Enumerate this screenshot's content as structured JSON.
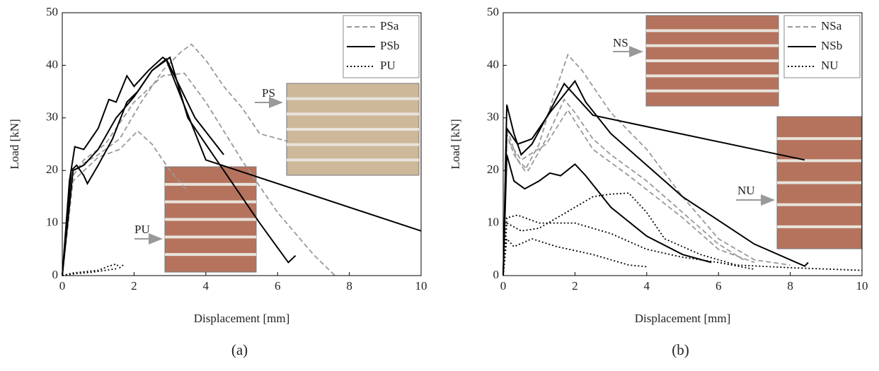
{
  "chart_data": [
    {
      "type": "line",
      "label": "(a)",
      "xlabel": "Displacement [mm]",
      "ylabel": "Load [kN]",
      "xlim": [
        0,
        10
      ],
      "ylim": [
        0,
        50
      ],
      "xticks": [
        0,
        2,
        4,
        6,
        8,
        10
      ],
      "yticks": [
        0,
        10,
        20,
        30,
        40,
        50
      ],
      "legend": "upper right",
      "annotations": [
        "PS",
        "PU"
      ],
      "series": [
        {
          "name": "PSa",
          "color": "#999999",
          "dash": "dashed",
          "curves": [
            {
              "x": [
                0,
                0.3,
                0.6,
                1.2,
                2,
                2.8,
                3.4,
                4,
                5,
                6,
                7,
                7.6
              ],
              "values": [
                0,
                19,
                22,
                25,
                33,
                38,
                38.5,
                33,
                22,
                12,
                4,
                0
              ]
            },
            {
              "x": [
                0,
                0.2,
                0.5,
                1,
                1.6,
                2.2,
                2.8,
                3.3,
                3.6,
                4,
                4.5,
                5,
                5.5,
                6.3
              ],
              "values": [
                0,
                18,
                21,
                23,
                26,
                33,
                39,
                42.5,
                44,
                41,
                36,
                32,
                27,
                25.5
              ]
            },
            {
              "x": [
                0,
                0.3,
                1,
                1.6,
                2.1,
                2.5,
                3,
                3.5
              ],
              "values": [
                0,
                18,
                22.5,
                24,
                27.5,
                25,
                20,
                16
              ]
            }
          ]
        },
        {
          "name": "PSb",
          "color": "#000000",
          "dash": "solid",
          "curves": [
            {
              "x": [
                0,
                0.2,
                0.35,
                0.6,
                1,
                1.3,
                1.5,
                1.8,
                2,
                2.4,
                2.8,
                2.9,
                4,
                10
              ],
              "values": [
                0,
                18,
                24.5,
                24,
                28,
                33.5,
                33,
                38,
                36,
                39,
                41.5,
                41,
                22,
                8.5
              ]
            },
            {
              "x": [
                0,
                0.25,
                0.4,
                0.6,
                0.7,
                1,
                1.4,
                1.8,
                2.1,
                2.5,
                3,
                3.5,
                4.5,
                5.5,
                6.3,
                6.5
              ],
              "values": [
                0,
                20,
                21,
                19,
                17.5,
                21,
                26,
                33,
                35,
                39,
                41.5,
                30,
                20,
                10,
                2.5,
                3.8
              ]
            },
            {
              "x": [
                0,
                0.3,
                0.6,
                1,
                1.5,
                2,
                2.5,
                2.9,
                3.2,
                3.7,
                4.5
              ],
              "values": [
                0,
                20,
                21,
                24,
                30,
                34,
                39,
                41.2,
                37,
                30,
                23
              ]
            }
          ]
        },
        {
          "name": "PU",
          "color": "#000000",
          "dash": "dotted",
          "curves": [
            {
              "x": [
                0,
                0.3,
                0.7,
                1,
                1.3,
                1.5,
                1.6,
                1.7
              ],
              "values": [
                0,
                0.5,
                0.8,
                1,
                1.8,
                2.2,
                1.5,
                2
              ]
            },
            {
              "x": [
                0,
                0.4,
                0.8,
                1.2,
                1.5
              ],
              "values": [
                0,
                0.4,
                0.6,
                1,
                1.3
              ]
            }
          ]
        }
      ]
    },
    {
      "type": "line",
      "label": "(b)",
      "xlabel": "Displacement [mm]",
      "ylabel": "Load [kN]",
      "xlim": [
        0,
        10
      ],
      "ylim": [
        0,
        50
      ],
      "xticks": [
        0,
        2,
        4,
        6,
        8,
        10
      ],
      "yticks": [
        0,
        10,
        20,
        30,
        40,
        50
      ],
      "legend": "upper right",
      "annotations": [
        "NS",
        "NU"
      ],
      "series": [
        {
          "name": "NSa",
          "color": "#999999",
          "dash": "dashed",
          "curves": [
            {
              "x": [
                0,
                0.1,
                0.3,
                0.6,
                1,
                1.4,
                1.8,
                2.2,
                3,
                4,
                5,
                6,
                7,
                8
              ],
              "values": [
                0,
                27,
                23,
                20,
                25,
                34,
                42,
                39,
                31,
                24,
                15,
                7,
                3,
                2
              ]
            },
            {
              "x": [
                0,
                0.1,
                0.4,
                0.7,
                1.2,
                1.7,
                2,
                2.5,
                3,
                4,
                5,
                6,
                6.7
              ],
              "values": [
                0,
                28,
                22,
                20,
                26,
                33.5,
                31,
                26,
                23,
                18,
                12,
                6,
                3
              ]
            },
            {
              "x": [
                0,
                0.1,
                0.5,
                1.2,
                1.8,
                2.5,
                3.5,
                5,
                6,
                7
              ],
              "values": [
                0,
                26,
                22,
                25,
                31.5,
                24,
                19,
                11,
                5,
                2.5
              ]
            }
          ]
        },
        {
          "name": "NSb",
          "color": "#000000",
          "dash": "solid",
          "curves": [
            {
              "x": [
                0,
                0.1,
                0.3,
                0.5,
                0.8,
                1.2,
                1.7,
                1.9,
                2.5,
                8.4
              ],
              "values": [
                0,
                32.5,
                27,
                23,
                25,
                30,
                36.5,
                35,
                30.5,
                22
              ]
            },
            {
              "x": [
                0,
                0.1,
                0.4,
                0.8,
                1.3,
                2,
                2.3,
                3,
                5,
                7,
                8.4,
                8.5
              ],
              "values": [
                0,
                28,
                25,
                26,
                31,
                37,
                33,
                27,
                15,
                6,
                1.8,
                2.5
              ]
            },
            {
              "x": [
                0,
                0.1,
                0.3,
                0.6,
                1,
                1.3,
                1.6,
                2,
                2.3,
                3,
                4,
                5,
                5.8
              ],
              "values": [
                0,
                23,
                18,
                16.5,
                18,
                19.5,
                19,
                21.2,
                19,
                13,
                7.5,
                4,
                2.5
              ]
            }
          ]
        },
        {
          "name": "NU",
          "color": "#000000",
          "dash": "dotted",
          "curves": [
            {
              "x": [
                0,
                0.1,
                0.5,
                1,
                1.5,
                2,
                2.5,
                3,
                3.5,
                4,
                4.5,
                5.5,
                6.5,
                8,
                10
              ],
              "values": [
                0,
                10,
                8.5,
                9,
                11,
                13,
                15,
                15.5,
                15.7,
                12,
                7,
                4,
                2,
                1.5,
                1
              ]
            },
            {
              "x": [
                0,
                0.1,
                0.4,
                1,
                2,
                3,
                4,
                5,
                6,
                7
              ],
              "values": [
                0,
                11,
                11.5,
                10,
                10,
                8,
                5,
                3.5,
                2.5,
                1.2
              ]
            },
            {
              "x": [
                0,
                0.1,
                0.3,
                0.8,
                1.5,
                2.5,
                3.5,
                4
              ],
              "values": [
                0,
                7,
                5.5,
                7,
                5.5,
                4,
                2,
                1.7
              ]
            }
          ]
        }
      ]
    }
  ]
}
